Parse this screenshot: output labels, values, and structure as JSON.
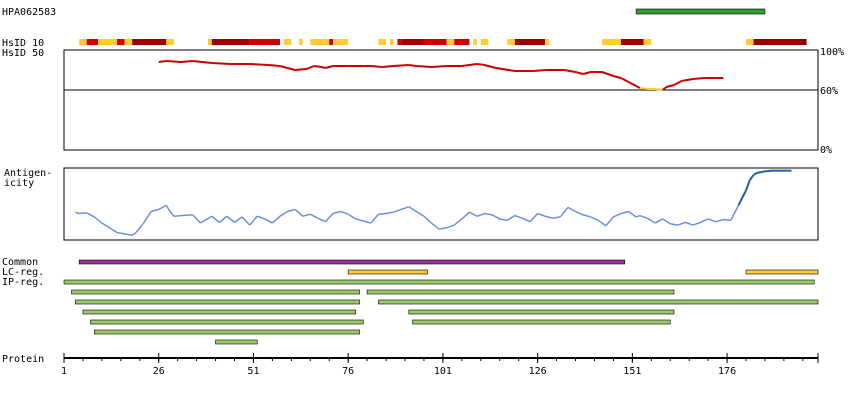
{
  "chart_data": {
    "type": "line",
    "antibody_id": "HPA062583",
    "antibody_range": [
      152,
      186
    ],
    "xaxis": {
      "label": "Protein",
      "range": [
        1,
        200
      ],
      "ticks": [
        1,
        26,
        51,
        76,
        101,
        126,
        151,
        176
      ]
    },
    "hsid": {
      "label_10": "HsID 10",
      "label_50": "HsID 50",
      "colors": {
        "high": "#990000",
        "mid": "#cc0000",
        "low": "#ffcc33"
      },
      "segments": [
        {
          "start": 5,
          "end": 7,
          "level": "low"
        },
        {
          "start": 7,
          "end": 10,
          "level": "mid"
        },
        {
          "start": 10,
          "end": 15,
          "level": "low"
        },
        {
          "start": 15,
          "end": 17,
          "level": "mid"
        },
        {
          "start": 17,
          "end": 19,
          "level": "low"
        },
        {
          "start": 19,
          "end": 28,
          "level": "high"
        },
        {
          "start": 28,
          "end": 30,
          "level": "low"
        },
        {
          "start": 39,
          "end": 40,
          "level": "low"
        },
        {
          "start": 40,
          "end": 50,
          "level": "high"
        },
        {
          "start": 50,
          "end": 58,
          "level": "mid"
        },
        {
          "start": 59,
          "end": 61,
          "level": "low"
        },
        {
          "start": 63,
          "end": 64,
          "level": "low"
        },
        {
          "start": 66,
          "end": 71,
          "level": "low"
        },
        {
          "start": 71,
          "end": 72,
          "level": "mid"
        },
        {
          "start": 72,
          "end": 76,
          "level": "low"
        },
        {
          "start": 84,
          "end": 86,
          "level": "low"
        },
        {
          "start": 87,
          "end": 88,
          "level": "low"
        },
        {
          "start": 89,
          "end": 90,
          "level": "mid"
        },
        {
          "start": 90,
          "end": 96,
          "level": "high"
        },
        {
          "start": 96,
          "end": 102,
          "level": "mid"
        },
        {
          "start": 102,
          "end": 104,
          "level": "low"
        },
        {
          "start": 104,
          "end": 108,
          "level": "mid"
        },
        {
          "start": 109,
          "end": 110,
          "level": "low"
        },
        {
          "start": 111,
          "end": 113,
          "level": "low"
        },
        {
          "start": 118,
          "end": 120,
          "level": "low"
        },
        {
          "start": 120,
          "end": 128,
          "level": "high"
        },
        {
          "start": 128,
          "end": 129,
          "level": "low"
        },
        {
          "start": 143,
          "end": 148,
          "level": "low"
        },
        {
          "start": 148,
          "end": 154,
          "level": "high"
        },
        {
          "start": 154,
          "end": 156,
          "level": "low"
        },
        {
          "start": 181,
          "end": 183,
          "level": "low"
        },
        {
          "start": 183,
          "end": 197,
          "level": "high"
        }
      ]
    },
    "identity": {
      "y_ticks": [
        "100%",
        "60%",
        "0%"
      ],
      "y_range": [
        0,
        100
      ],
      "threshold": 60,
      "series": [
        [
          26,
          88
        ],
        [
          28,
          89
        ],
        [
          32,
          88
        ],
        [
          35,
          89
        ],
        [
          40,
          87
        ],
        [
          45,
          86
        ],
        [
          50,
          86
        ],
        [
          55,
          85
        ],
        [
          58,
          84
        ],
        [
          60,
          82
        ],
        [
          62,
          80
        ],
        [
          65,
          81
        ],
        [
          67,
          84
        ],
        [
          69,
          83
        ],
        [
          70,
          82
        ],
        [
          72,
          84
        ],
        [
          76,
          84
        ],
        [
          80,
          84
        ],
        [
          82,
          84
        ],
        [
          85,
          83
        ],
        [
          88,
          84
        ],
        [
          92,
          85
        ],
        [
          94,
          84
        ],
        [
          98,
          83
        ],
        [
          102,
          84
        ],
        [
          106,
          84
        ],
        [
          110,
          86
        ],
        [
          112,
          85
        ],
        [
          115,
          82
        ],
        [
          120,
          79
        ],
        [
          125,
          79
        ],
        [
          128,
          80
        ],
        [
          133,
          80
        ],
        [
          136,
          78
        ],
        [
          138,
          76
        ],
        [
          140,
          78
        ],
        [
          143,
          78
        ],
        [
          146,
          74
        ],
        [
          148,
          72
        ],
        [
          150,
          68
        ],
        [
          152,
          64
        ],
        [
          153,
          62
        ],
        [
          155,
          61
        ],
        [
          157,
          61
        ],
        [
          159,
          60
        ],
        [
          160,
          63
        ],
        [
          162,
          65
        ],
        [
          164,
          69
        ],
        [
          167,
          71
        ],
        [
          170,
          72
        ],
        [
          173,
          72
        ],
        [
          175,
          72
        ]
      ],
      "low_range": [
        153,
        159
      ]
    },
    "antigenicity": {
      "label_line1": "Antigen-",
      "label_line2": "icity",
      "y_range": [
        0,
        1
      ],
      "series": [
        [
          4,
          0.38
        ],
        [
          5,
          0.36
        ],
        [
          7,
          0.37
        ],
        [
          9,
          0.31
        ],
        [
          11,
          0.22
        ],
        [
          13,
          0.15
        ],
        [
          15,
          0.08
        ],
        [
          17,
          0.06
        ],
        [
          19,
          0.04
        ],
        [
          20,
          0.08
        ],
        [
          22,
          0.22
        ],
        [
          24,
          0.39
        ],
        [
          26,
          0.42
        ],
        [
          28,
          0.48
        ],
        [
          29,
          0.39
        ],
        [
          30,
          0.32
        ],
        [
          32,
          0.33
        ],
        [
          35,
          0.34
        ],
        [
          37,
          0.22
        ],
        [
          40,
          0.32
        ],
        [
          42,
          0.23
        ],
        [
          44,
          0.32
        ],
        [
          46,
          0.23
        ],
        [
          48,
          0.31
        ],
        [
          50,
          0.19
        ],
        [
          52,
          0.32
        ],
        [
          54,
          0.28
        ],
        [
          56,
          0.22
        ],
        [
          58,
          0.32
        ],
        [
          60,
          0.39
        ],
        [
          62,
          0.42
        ],
        [
          64,
          0.32
        ],
        [
          66,
          0.35
        ],
        [
          68,
          0.29
        ],
        [
          70,
          0.24
        ],
        [
          72,
          0.36
        ],
        [
          74,
          0.39
        ],
        [
          76,
          0.35
        ],
        [
          78,
          0.28
        ],
        [
          80,
          0.25
        ],
        [
          82,
          0.22
        ],
        [
          84,
          0.35
        ],
        [
          86,
          0.36
        ],
        [
          88,
          0.38
        ],
        [
          90,
          0.42
        ],
        [
          92,
          0.46
        ],
        [
          94,
          0.39
        ],
        [
          96,
          0.32
        ],
        [
          98,
          0.22
        ],
        [
          100,
          0.13
        ],
        [
          102,
          0.15
        ],
        [
          104,
          0.19
        ],
        [
          106,
          0.28
        ],
        [
          108,
          0.38
        ],
        [
          110,
          0.32
        ],
        [
          112,
          0.36
        ],
        [
          114,
          0.34
        ],
        [
          116,
          0.28
        ],
        [
          118,
          0.26
        ],
        [
          120,
          0.33
        ],
        [
          122,
          0.29
        ],
        [
          124,
          0.24
        ],
        [
          126,
          0.36
        ],
        [
          128,
          0.32
        ],
        [
          130,
          0.29
        ],
        [
          132,
          0.31
        ],
        [
          134,
          0.45
        ],
        [
          136,
          0.39
        ],
        [
          138,
          0.34
        ],
        [
          140,
          0.31
        ],
        [
          142,
          0.26
        ],
        [
          144,
          0.18
        ],
        [
          146,
          0.31
        ],
        [
          148,
          0.36
        ],
        [
          150,
          0.39
        ],
        [
          152,
          0.31
        ],
        [
          153,
          0.33
        ],
        [
          155,
          0.29
        ],
        [
          157,
          0.22
        ],
        [
          159,
          0.28
        ],
        [
          161,
          0.21
        ],
        [
          163,
          0.19
        ],
        [
          165,
          0.23
        ],
        [
          167,
          0.19
        ],
        [
          169,
          0.23
        ],
        [
          171,
          0.28
        ],
        [
          173,
          0.24
        ],
        [
          175,
          0.27
        ],
        [
          177,
          0.26
        ],
        [
          179,
          0.48
        ],
        [
          181,
          0.7
        ],
        [
          182,
          0.85
        ],
        [
          183,
          0.93
        ],
        [
          184,
          0.96
        ],
        [
          186,
          0.98
        ],
        [
          188,
          0.99
        ],
        [
          190,
          0.99
        ],
        [
          193,
          0.99
        ]
      ],
      "highlight_from": 178
    },
    "tracks": {
      "common": {
        "label": "Common",
        "color": "#993399",
        "bars": [
          [
            5,
            149
          ]
        ]
      },
      "lc_reg": {
        "label": "LC-reg.",
        "color": "#ffcc33",
        "bars": [
          [
            76,
            97
          ],
          [
            181,
            200
          ]
        ]
      },
      "ip_reg": {
        "label": "IP-reg.",
        "color": "#99cc66",
        "bars": [
          [
            1,
            199
          ],
          [
            3,
            79
          ],
          [
            81,
            162
          ],
          [
            4,
            79
          ],
          [
            84,
            200
          ],
          [
            6,
            78
          ],
          [
            92,
            162
          ],
          [
            8,
            80
          ],
          [
            93,
            161
          ],
          [
            9,
            79
          ],
          [
            41,
            52
          ]
        ]
      }
    }
  }
}
